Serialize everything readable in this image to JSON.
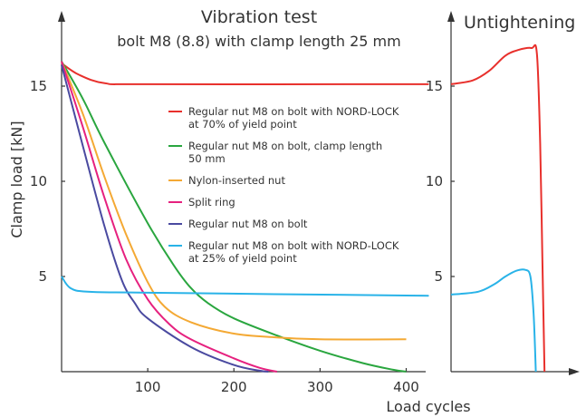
{
  "chart_data": [
    {
      "type": "line",
      "title": "Vibration test",
      "subtitle": "bolt M8 (8.8) with clamp length 25 mm",
      "ylabel": "Clamp load [kN]",
      "xlabel": "Load cycles",
      "x_ticks": [
        100,
        200,
        300,
        400
      ],
      "y_ticks": [
        5,
        10,
        15
      ],
      "xlim": [
        0,
        410
      ],
      "ylim": [
        0,
        17.5
      ],
      "grid": false,
      "legend_position": "center-right",
      "series": [
        {
          "name_lines": [
            "Regular nut M8 on bolt with NORD-LOCK",
            "at 70% of yield point"
          ],
          "color": "#e8302c",
          "points": [
            [
              0,
              16.2
            ],
            [
              20,
              15.6
            ],
            [
              50,
              15.15
            ],
            [
              100,
              15.1
            ],
            [
              400,
              15.1
            ],
            [
              410,
              15.1
            ]
          ]
        },
        {
          "name_lines": [
            "Regular nut M8 on bolt, clamp length",
            "50 mm"
          ],
          "color": "#2aa63f",
          "points": [
            [
              0,
              16.3
            ],
            [
              25,
              14.3
            ],
            [
              50,
              12.0
            ],
            [
              100,
              7.8
            ],
            [
              130,
              5.6
            ],
            [
              150,
              4.4
            ],
            [
              170,
              3.6
            ],
            [
              200,
              2.8
            ],
            [
              250,
              1.9
            ],
            [
              300,
              1.1
            ],
            [
              350,
              0.45
            ],
            [
              385,
              0.1
            ],
            [
              400,
              0.0
            ]
          ]
        },
        {
          "name_lines": [
            "Nylon-inserted nut"
          ],
          "color": "#f4a934",
          "points": [
            [
              0,
              16.3
            ],
            [
              25,
              13.5
            ],
            [
              50,
              10.2
            ],
            [
              75,
              7.2
            ],
            [
              100,
              4.7
            ],
            [
              120,
              3.4
            ],
            [
              150,
              2.6
            ],
            [
              200,
              2.0
            ],
            [
              250,
              1.8
            ],
            [
              300,
              1.7
            ],
            [
              400,
              1.7
            ]
          ]
        },
        {
          "name_lines": [
            "Split ring"
          ],
          "color": "#e6217f",
          "points": [
            [
              0,
              16.3
            ],
            [
              25,
              12.8
            ],
            [
              50,
              9.1
            ],
            [
              75,
              5.9
            ],
            [
              100,
              3.8
            ],
            [
              125,
              2.5
            ],
            [
              150,
              1.7
            ],
            [
              200,
              0.7
            ],
            [
              230,
              0.2
            ],
            [
              250,
              0.0
            ]
          ]
        },
        {
          "name_lines": [
            "Regular nut M8 on bolt"
          ],
          "color": "#4a4aa0",
          "points": [
            [
              0,
              16.1
            ],
            [
              25,
              11.8
            ],
            [
              50,
              7.6
            ],
            [
              70,
              4.8
            ],
            [
              85,
              3.6
            ],
            [
              100,
              2.8
            ],
            [
              150,
              1.3
            ],
            [
              200,
              0.35
            ],
            [
              230,
              0.05
            ],
            [
              240,
              0.0
            ]
          ]
        },
        {
          "name_lines": [
            "Regular nut M8 on bolt with NORD-LOCK",
            "at 25% of yield point"
          ],
          "color": "#29b3e8",
          "points": [
            [
              0,
              5.0
            ],
            [
              10,
              4.4
            ],
            [
              30,
              4.2
            ],
            [
              100,
              4.15
            ],
            [
              400,
              4.0
            ],
            [
              410,
              4.0
            ]
          ]
        }
      ]
    },
    {
      "type": "line",
      "title": "Untightening",
      "y_ticks": [
        5,
        10,
        15
      ],
      "ylim": [
        0,
        17.5
      ],
      "grid": false,
      "series": [
        {
          "color": "#e8302c",
          "points": [
            [
              0,
              15.1
            ],
            [
              0.2,
              15.3
            ],
            [
              0.35,
              15.8
            ],
            [
              0.5,
              16.6
            ],
            [
              0.62,
              16.9
            ],
            [
              0.74,
              17.0
            ],
            [
              0.79,
              16.7
            ],
            [
              0.82,
              12.0
            ],
            [
              0.84,
              6.0
            ],
            [
              0.86,
              0.0
            ]
          ]
        },
        {
          "color": "#29b3e8",
          "points": [
            [
              0,
              4.05
            ],
            [
              0.25,
              4.2
            ],
            [
              0.4,
              4.6
            ],
            [
              0.5,
              5.0
            ],
            [
              0.6,
              5.3
            ],
            [
              0.68,
              5.35
            ],
            [
              0.73,
              5.0
            ],
            [
              0.76,
              3.0
            ],
            [
              0.78,
              0.0
            ]
          ]
        }
      ]
    }
  ]
}
